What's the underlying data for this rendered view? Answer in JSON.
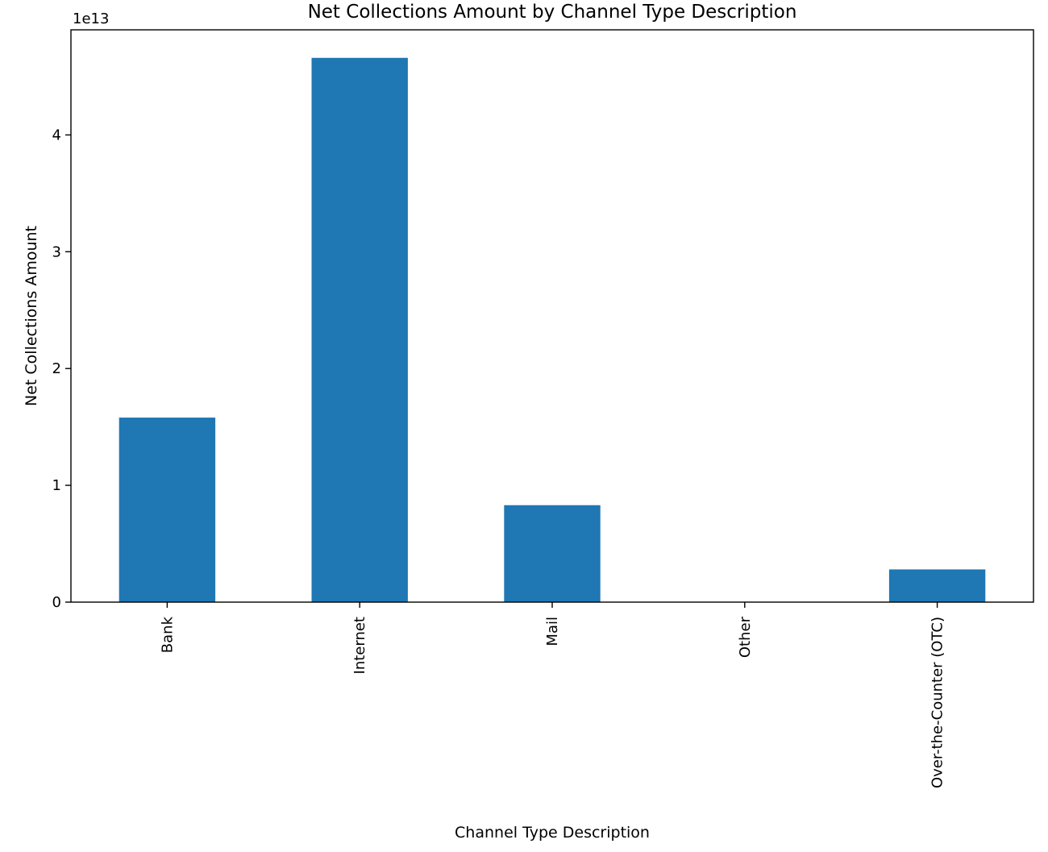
{
  "chart_data": {
    "type": "bar",
    "title": "Net Collections Amount by Channel Type Description",
    "xlabel": "Channel Type Description",
    "ylabel": "Net Collections Amount",
    "offset_text": "1e13",
    "categories": [
      "Bank",
      "Internet",
      "Mail",
      "Other",
      "Over-the-Counter (OTC)"
    ],
    "values": [
      15800000000000.0,
      46600000000000.0,
      8300000000000.0,
      0.0,
      2800000000000.0
    ],
    "ylim": [
      0,
      49000000000000.0
    ],
    "yticks": [
      0,
      10000000000000.0,
      20000000000000.0,
      30000000000000.0,
      40000000000000.0
    ],
    "ytick_labels": [
      "0",
      "1",
      "2",
      "3",
      "4"
    ],
    "bar_color": "#1f77b4",
    "grid": false,
    "legend": false
  }
}
